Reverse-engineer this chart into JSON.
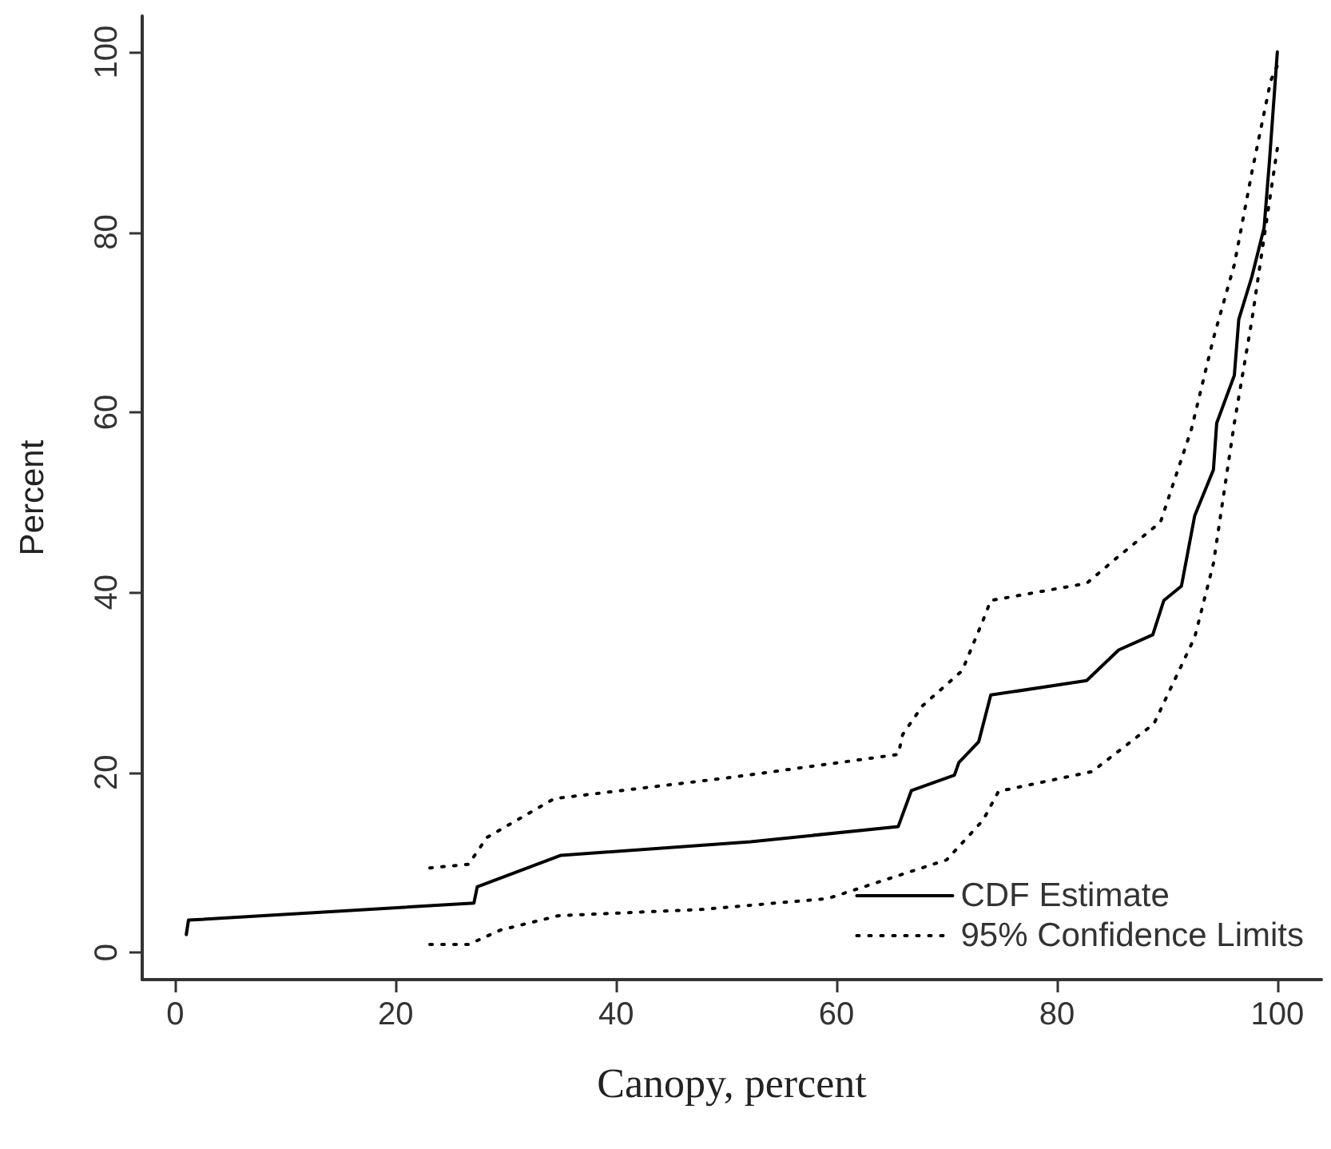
{
  "chart_data": {
    "type": "line",
    "xlabel": "Canopy, percent",
    "ylabel": "Percent",
    "xlim": [
      -3,
      104
    ],
    "ylim": [
      -3,
      104
    ],
    "xticks": [
      0,
      20,
      40,
      60,
      80,
      100
    ],
    "yticks": [
      0,
      20,
      40,
      60,
      80,
      100
    ],
    "grid": false,
    "legend": "bottom right",
    "marker": "none",
    "series": [
      {
        "name": "CDF Estimate",
        "color": "#000000",
        "line_style": "solid",
        "x": [
          1.0,
          1.2,
          27.1,
          27.4,
          35,
          52.2,
          65.6,
          66.8,
          70.7,
          71.1,
          72.9,
          74.0,
          82.7,
          85.6,
          88.7,
          89.7,
          91.3,
          92.5,
          94.2,
          94.5,
          96.1,
          96.5,
          97.7,
          98.8,
          99.3,
          100
        ],
        "values": [
          2.0,
          3.6,
          5.5,
          7.3,
          10.8,
          12.3,
          14.0,
          18.0,
          19.7,
          21.1,
          23.4,
          28.6,
          30.2,
          33.6,
          35.3,
          39.1,
          40.7,
          48.5,
          53.6,
          58.8,
          64.1,
          70.3,
          75.1,
          80.5,
          88.1,
          100
        ]
      },
      {
        "name": "95% Confidence Limits",
        "color": "#000000",
        "line_style": "dotted",
        "x": [
          23.1,
          26.6,
          28.3,
          34.4,
          50.1,
          65.6,
          66.0,
          67.8,
          71.4,
          73.3,
          74.0,
          82.7,
          85.3,
          89.4,
          92.2,
          94.2,
          96.1,
          97.7,
          99.4,
          100
        ],
        "values": [
          9.4,
          9.8,
          12.8,
          17.1,
          19.4,
          22.0,
          24.2,
          27.4,
          31.3,
          36.9,
          39.1,
          41.0,
          43.7,
          47.8,
          58.1,
          68.2,
          76.4,
          86.7,
          96.8,
          98.5
        ]
      },
      {
        "color": "#000000",
        "line_style": "dotted",
        "x": [
          23.1,
          26.6,
          29.5,
          34.8,
          47.9,
          59.2,
          70.0,
          73.3,
          74.7,
          83.2,
          88.8,
          92.5,
          94.2,
          96.1,
          97.7,
          99.1,
          100
        ],
        "values": [
          0.9,
          0.9,
          2.5,
          4.1,
          4.8,
          6.0,
          10.3,
          14.7,
          17.9,
          20.1,
          25.4,
          35.0,
          43.2,
          58.8,
          70.3,
          81.9,
          89.3
        ]
      }
    ]
  }
}
